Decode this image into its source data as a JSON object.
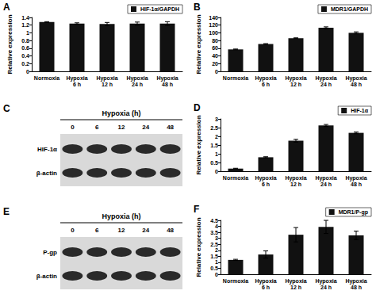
{
  "chart_data": [
    {
      "type": "bar",
      "title": "A",
      "ylabel": "Relative expression",
      "categories": [
        "Normoxia",
        "Hypoxia 6 h",
        "Hypoxia 12 h",
        "Hypoxia 24 h",
        "Hypoxia 48 h"
      ],
      "series": [
        {
          "name": "HIF-1α/GAPDH",
          "color": "#111111",
          "values": [
            1.28,
            1.24,
            1.23,
            1.24,
            1.24
          ],
          "errors": [
            0.01,
            0.02,
            0.04,
            0.04,
            0.05
          ]
        }
      ],
      "ylim": [
        0,
        1.4
      ],
      "yticks": [
        0,
        0.2,
        0.4,
        0.6,
        0.8,
        1,
        1.2,
        1.4
      ],
      "legend": "upper right",
      "grid": false
    },
    {
      "type": "bar",
      "title": "B",
      "ylabel": "Relative expression",
      "categories": [
        "Normoxia",
        "Hypoxia 6 h",
        "Hypoxia 12 h",
        "Hypoxia 24 h",
        "Hypoxia 48 h"
      ],
      "series": [
        {
          "name": "MDR1/GAPDH",
          "color": "#111111",
          "values": [
            57,
            71,
            86,
            113,
            100
          ],
          "errors": [
            1,
            1,
            1,
            2.5,
            2.5
          ]
        }
      ],
      "ylim": [
        0,
        140
      ],
      "yticks": [
        0,
        20,
        40,
        60,
        80,
        100,
        120,
        140
      ],
      "legend": "upper right",
      "grid": false
    },
    {
      "type": "bar",
      "title": "D",
      "ylabel": "Relative expression",
      "categories": [
        "Normoxia",
        "Hypoxia 6 h",
        "Hypoxia 12 h",
        "Hypoxia 24 h",
        "Hypoxia 48 h"
      ],
      "series": [
        {
          "name": "HIF-1α",
          "color": "#111111",
          "values": [
            0.15,
            0.8,
            1.75,
            2.62,
            2.2
          ],
          "errors": [
            0.02,
            0.03,
            0.08,
            0.06,
            0.05
          ]
        }
      ],
      "ylim": [
        0,
        3
      ],
      "yticks": [
        0,
        0.5,
        1,
        1.5,
        2,
        2.5,
        3
      ],
      "legend": "upper right",
      "grid": false
    },
    {
      "type": "bar",
      "title": "F",
      "ylabel": "Relative expression",
      "categories": [
        "Normoxia",
        "Hypoxia 6 h",
        "Hypoxia 12 h",
        "Hypoxia 24 h",
        "Hypoxia 48 h"
      ],
      "series": [
        {
          "name": "MDR1/P-gp",
          "color": "#111111",
          "values": [
            1.2,
            1.65,
            3.3,
            3.95,
            3.25
          ],
          "errors": [
            0.05,
            0.3,
            0.6,
            0.55,
            0.35
          ]
        }
      ],
      "ylim": [
        0,
        4.5
      ],
      "yticks": [
        0,
        0.5,
        1,
        1.5,
        2,
        2.5,
        3,
        3.5,
        4,
        4.5
      ],
      "legend": "upper right",
      "grid": false
    }
  ],
  "blots": [
    {
      "title": "C",
      "header": "Hypoxia (h)",
      "lanes": [
        "0",
        "6",
        "12",
        "24",
        "48"
      ],
      "bands": [
        "HIF-1α",
        "β-actin"
      ]
    },
    {
      "title": "E",
      "header": "Hypoxia (h)",
      "lanes": [
        "0",
        "6",
        "12",
        "24",
        "48"
      ],
      "bands": [
        "P-gp",
        "β-actin"
      ]
    }
  ]
}
